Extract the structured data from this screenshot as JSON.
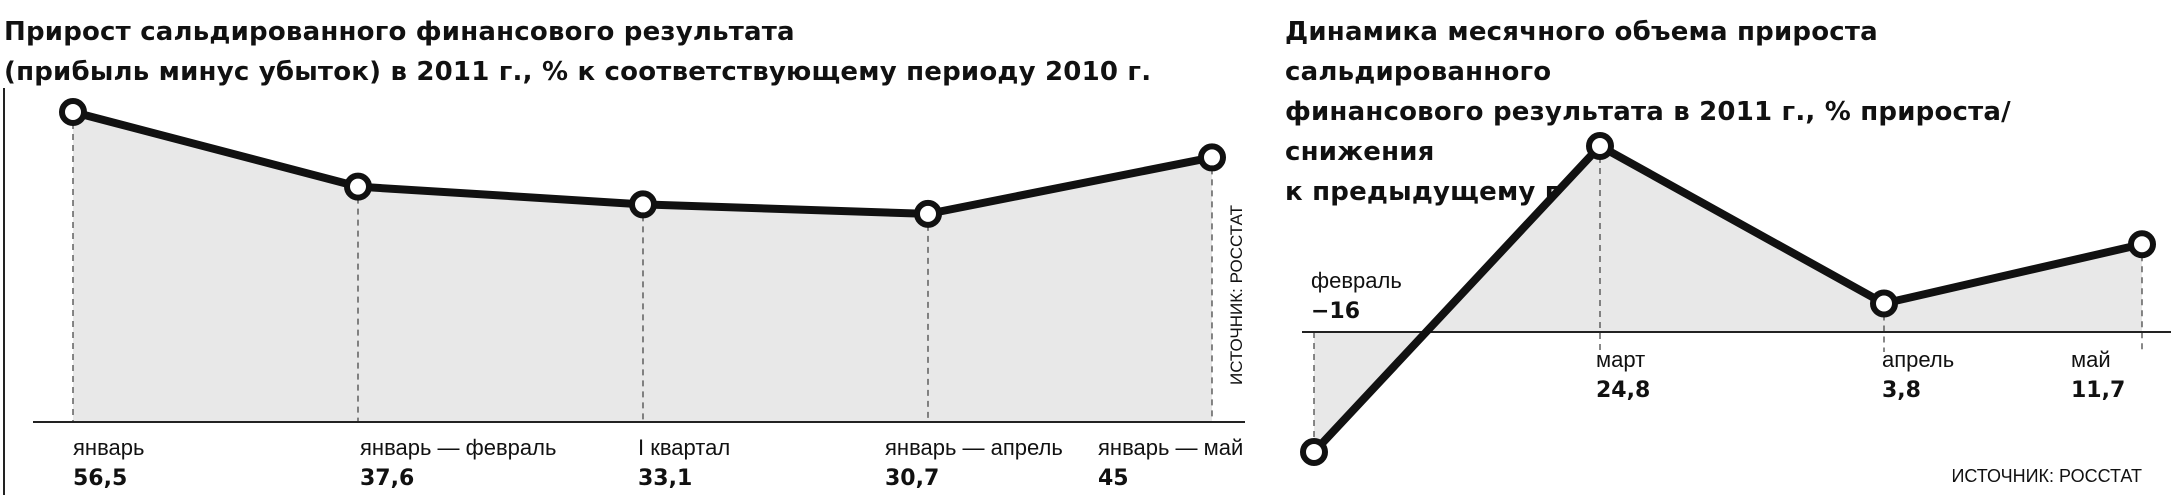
{
  "charts": [
    {
      "title_line1": "Прирост сальдированного финансового результата",
      "title_line2": "(прибыль минус убыток) в 2011 г., % к соответствующему периоду 2010 г.",
      "source": "ИСТОЧНИК: РОССТАТ"
    },
    {
      "title_line1": "Динамика месячного объема прироста сальдированного",
      "title_line2": "финансового результата в 2011 г., % прироста/снижения",
      "title_line3": "к предыдущему периоду",
      "source": "ИСТОЧНИК: РОССТАТ"
    }
  ],
  "chart_data": [
    {
      "type": "area",
      "title": "Прирост сальдированного финансового результата (прибыль минус убыток) в 2011 г., % к соответствующему периоду 2010 г.",
      "categories": [
        "январь",
        "январь — февраль",
        "I квартал",
        "январь — апрель",
        "январь — май"
      ],
      "value_labels": [
        "56,5",
        "37,6",
        "33,1",
        "30,7",
        "45"
      ],
      "values": [
        56.5,
        37.6,
        33.1,
        30.7,
        45
      ],
      "xlabel": "",
      "ylabel": "",
      "ylim": [
        -22,
        56.5
      ],
      "grid": false,
      "legend": "none",
      "colors": {
        "line": "#111111",
        "fill": "#e8e8e8",
        "marker_fill": "#ffffff"
      }
    },
    {
      "type": "area",
      "title": "Динамика месячного объема прироста сальдированного финансового результата в 2011 г., % прироста/снижения к предыдущему периоду",
      "categories": [
        "февраль",
        "март",
        "апрель",
        "май"
      ],
      "value_labels": [
        "−16",
        "24,8",
        "3,8",
        "11,7"
      ],
      "values": [
        -16,
        24.8,
        3.8,
        11.7
      ],
      "xlabel": "",
      "ylabel": "",
      "ylim": [
        -16,
        24.8
      ],
      "grid": false,
      "legend": "none",
      "colors": {
        "line": "#111111",
        "fill": "#e8e8e8",
        "marker_fill": "#ffffff"
      }
    }
  ]
}
